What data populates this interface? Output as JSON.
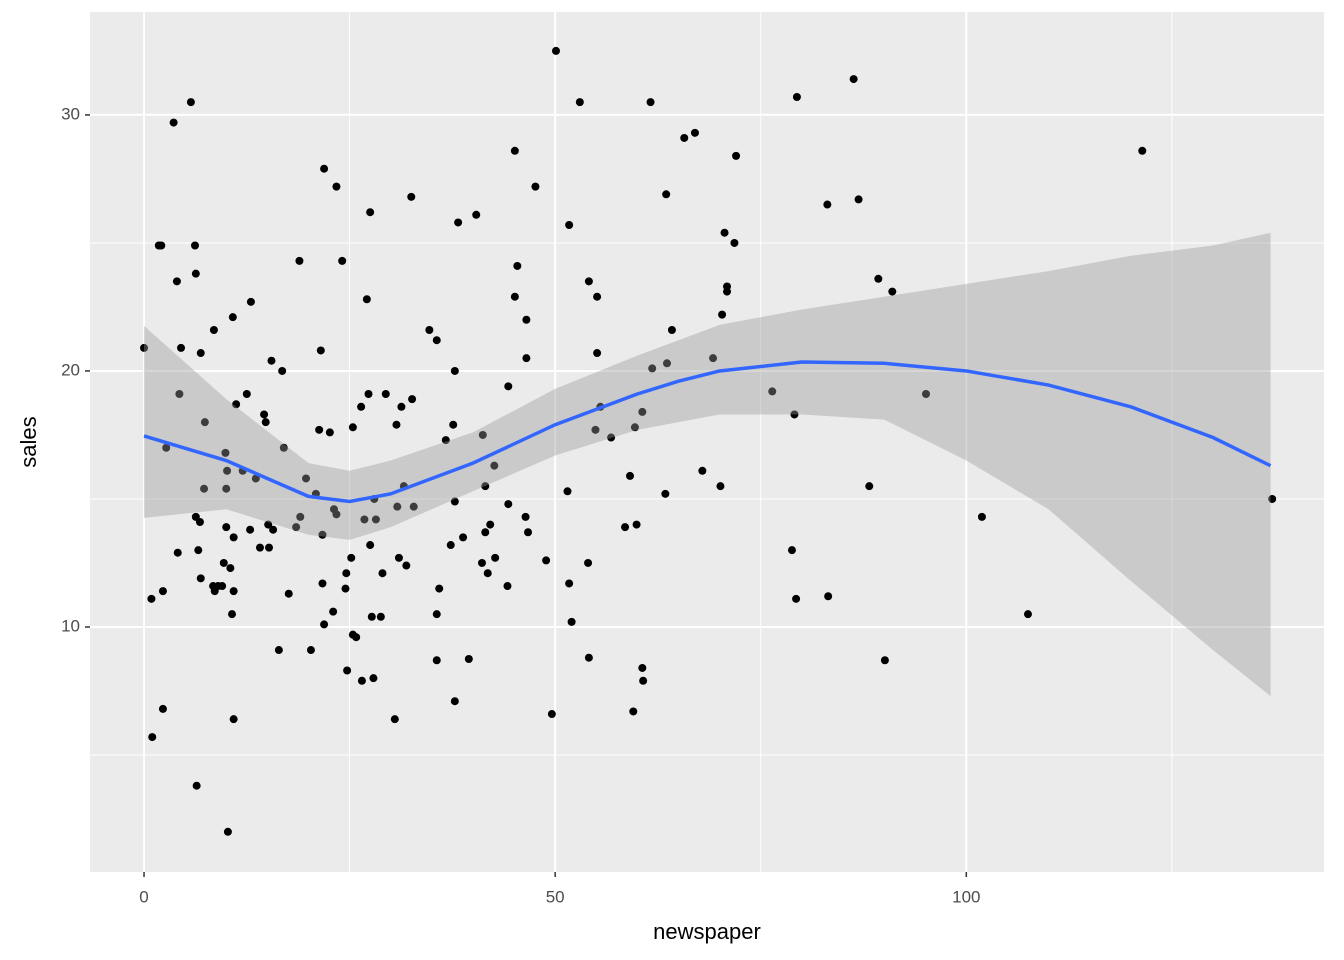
{
  "chart_data": {
    "type": "scatter",
    "x_label": "newspaper",
    "y_label": "sales",
    "xlim": [
      -6.57,
      143.5
    ],
    "ylim": [
      0.43,
      34.02
    ],
    "xticks": [
      0,
      50,
      100
    ],
    "yticks": [
      10,
      20,
      30
    ],
    "x_minor_breaks": [
      25,
      75,
      125
    ],
    "y_minor_breaks": [
      5,
      15,
      25
    ],
    "grid": true,
    "point_color": "#000000",
    "x": [
      0,
      0.9,
      1,
      1.8,
      2.1,
      2.3,
      2.3,
      2.7,
      3.6,
      4.0,
      4.1,
      4.3,
      4.5,
      5.7,
      6.2,
      6.3,
      6.3,
      6.4,
      6.6,
      6.8,
      6.9,
      6.9,
      7.3,
      7.4,
      8.4,
      8.5,
      8.6,
      9.0,
      9.5,
      9.7,
      9.9,
      10.0,
      10.0,
      10.1,
      10.2,
      10.5,
      10.7,
      10.8,
      10.9,
      10.9,
      10.9,
      11.2,
      12.0,
      12.5,
      12.9,
      13.0,
      13.6,
      14.1,
      14.6,
      14.8,
      15.1,
      15.2,
      15.5,
      15.7,
      16.4,
      16.8,
      17.0,
      17.6,
      18.5,
      18.9,
      19.0,
      19.7,
      20.3,
      20.9,
      21.3,
      21.5,
      21.7,
      21.7,
      21.9,
      21.9,
      22.6,
      23.0,
      23.1,
      23.4,
      23.4,
      24.1,
      24.5,
      24.6,
      24.7,
      25.2,
      25.4,
      25.4,
      25.8,
      26.4,
      26.5,
      26.8,
      27.1,
      27.3,
      27.5,
      27.5,
      27.7,
      27.9,
      28.0,
      28.2,
      28.8,
      29.0,
      29.4,
      30.5,
      30.7,
      30.8,
      31.0,
      31.3,
      31.6,
      31.9,
      32.5,
      32.6,
      32.8,
      34.7,
      35.6,
      35.6,
      35.6,
      35.9,
      36.7,
      37.3,
      37.6,
      37.8,
      37.8,
      37.8,
      38.2,
      38.8,
      39.5,
      40.4,
      41.1,
      41.2,
      41.5,
      41.5,
      41.8,
      42.1,
      42.6,
      42.7,
      44.2,
      44.3,
      44.3,
      45.1,
      45.1,
      45.4,
      46.4,
      46.5,
      46.5,
      46.7,
      47.6,
      48.9,
      49.6,
      50.1,
      51.5,
      51.7,
      51.7,
      52.0,
      53.0,
      54.0,
      54.1,
      54.1,
      54.9,
      55.1,
      55.1,
      55.5,
      56.8,
      58.5,
      59.1,
      59.5,
      59.7,
      59.9,
      60.6,
      60.6,
      60.7,
      61.6,
      61.8,
      63.4,
      63.5,
      63.6,
      64.2,
      65.7,
      67.0,
      67.9,
      69.2,
      70.1,
      70.3,
      70.6,
      70.9,
      70.9,
      71.8,
      72.0,
      76.4,
      78.8,
      79.1,
      79.4,
      79.3,
      83.1,
      83.2,
      86.3,
      86.9,
      88.2,
      89.3,
      90.1,
      91.0,
      95.1,
      101.9,
      107.5,
      121.4,
      137.2
    ],
    "y": [
      20.9,
      11.1,
      5.7,
      24.9,
      24.9,
      11.4,
      6.8,
      17.0,
      29.7,
      23.5,
      12.9,
      19.1,
      20.9,
      30.5,
      24.9,
      23.8,
      14.3,
      3.8,
      13.0,
      14.1,
      20.7,
      11.9,
      15.4,
      18.0,
      11.6,
      21.6,
      11.4,
      11.6,
      11.6,
      12.5,
      16.8,
      13.9,
      15.4,
      16.1,
      2.0,
      12.3,
      10.5,
      22.1,
      6.4,
      11.4,
      13.5,
      18.7,
      16.1,
      19.1,
      13.8,
      22.7,
      15.8,
      13.1,
      18.3,
      18.0,
      14.0,
      13.1,
      20.4,
      13.8,
      9.1,
      20.0,
      17.0,
      11.3,
      13.9,
      24.3,
      14.3,
      15.8,
      9.1,
      15.2,
      17.7,
      20.8,
      11.7,
      13.6,
      27.9,
      10.1,
      17.6,
      10.6,
      14.6,
      27.2,
      14.4,
      24.3,
      11.5,
      12.1,
      8.3,
      12.7,
      17.8,
      9.7,
      9.6,
      18.6,
      7.9,
      14.2,
      22.8,
      19.1,
      26.2,
      13.2,
      10.4,
      8.0,
      15.0,
      14.2,
      10.4,
      12.1,
      19.1,
      6.4,
      17.9,
      14.7,
      12.7,
      18.6,
      15.5,
      12.4,
      26.8,
      18.9,
      14.7,
      21.6,
      21.2,
      8.7,
      10.5,
      11.5,
      17.3,
      13.2,
      17.9,
      20.0,
      14.9,
      7.1,
      25.8,
      13.5,
      8.75,
      26.1,
      12.5,
      17.5,
      13.7,
      15.5,
      12.1,
      14.0,
      16.3,
      12.7,
      11.6,
      19.4,
      14.8,
      28.6,
      22.9,
      24.1,
      14.3,
      22.0,
      20.5,
      13.7,
      27.2,
      12.6,
      6.6,
      32.5,
      15.3,
      25.7,
      11.7,
      10.2,
      30.5,
      12.5,
      23.5,
      8.8,
      17.7,
      22.9,
      20.7,
      18.6,
      17.4,
      13.9,
      15.9,
      6.7,
      17.8,
      14.0,
      18.4,
      8.4,
      7.9,
      30.5,
      20.1,
      15.2,
      26.9,
      20.3,
      21.6,
      29.1,
      29.3,
      16.1,
      20.5,
      15.5,
      22.2,
      25.4,
      23.3,
      23.1,
      25.0,
      28.4,
      19.2,
      13.0,
      18.3,
      30.7,
      11.1,
      26.5,
      11.2,
      31.4,
      26.7,
      15.5,
      23.6,
      8.7,
      23.1,
      19.1,
      14.3,
      10.5,
      28.6,
      15.0
    ],
    "smooth": {
      "color": "#3366ff",
      "fill": "#999999",
      "x": [
        0,
        10,
        20,
        25,
        30,
        40,
        50,
        60,
        65,
        70,
        80,
        90,
        100,
        110,
        120,
        130,
        137
      ],
      "y": [
        17.46,
        16.5,
        15.1,
        14.9,
        15.2,
        16.4,
        17.9,
        19.1,
        19.6,
        20.0,
        20.35,
        20.3,
        20.0,
        19.45,
        18.6,
        17.4,
        16.3
      ],
      "ymin": [
        14.26,
        14.6,
        13.6,
        13.4,
        13.9,
        15.3,
        16.7,
        17.7,
        18.0,
        18.3,
        18.3,
        18.1,
        16.5,
        14.6,
        11.8,
        9.1,
        7.3
      ],
      "ymax": [
        21.76,
        18.9,
        16.4,
        16.1,
        16.5,
        17.6,
        19.3,
        20.6,
        21.2,
        21.8,
        22.4,
        22.9,
        23.4,
        23.9,
        24.5,
        24.9,
        25.4
      ]
    }
  }
}
